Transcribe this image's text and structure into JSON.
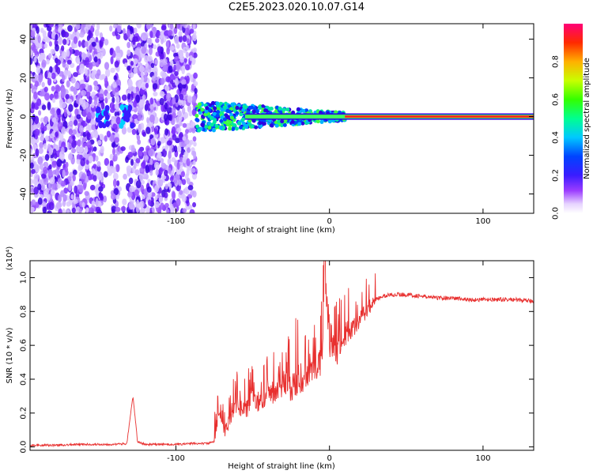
{
  "title": "C2E5.2023.020.10.07.G14",
  "chart_data": [
    {
      "type": "heatmap",
      "xlabel": "Height of straight line (km)",
      "ylabel": "Frequency (Hz)",
      "xlim": [
        -195,
        133
      ],
      "ylim": [
        -50,
        48
      ],
      "x_ticks": [
        -100,
        0,
        100
      ],
      "x_tick_labels": [
        "-100",
        "0",
        "100"
      ],
      "y_ticks": [
        -40,
        -20,
        0,
        20,
        40
      ],
      "y_tick_labels": [
        "-40",
        "-20",
        "0",
        "20",
        "40"
      ],
      "colorbar": {
        "label": "Normalized spectral amplitude",
        "range": [
          0,
          1
        ],
        "ticks": [
          0.0,
          0.2,
          0.4,
          0.6,
          0.8
        ],
        "tick_labels": [
          "0.0",
          "0.2",
          "0.4",
          "0.6",
          "0.8"
        ],
        "colormap": "rainbow"
      },
      "regions": [
        {
          "x": [
            -195,
            -87
          ],
          "freq": [
            -50,
            48
          ],
          "amplitude": 0.12,
          "description": "noise"
        },
        {
          "x": [
            -87,
            10
          ],
          "freq": [
            -4,
            4
          ],
          "amplitude": 0.5
        },
        {
          "x": [
            10,
            133
          ],
          "freq": [
            -1,
            1
          ],
          "amplitude": 0.95
        }
      ]
    },
    {
      "type": "line",
      "xlabel": "Height of straight line (km)",
      "ylabel": "SNR (10 * v/v)",
      "y_multiplier_label": "(x10⁴)",
      "xlim": [
        -195,
        133
      ],
      "ylim": [
        -0.02,
        1.1
      ],
      "x_ticks": [
        -100,
        0,
        100
      ],
      "x_tick_labels": [
        "-100",
        "0",
        "100"
      ],
      "y_ticks": [
        0.0,
        0.2,
        0.4,
        0.6,
        0.8,
        1.0
      ],
      "y_tick_labels": [
        "0.0",
        "0.2",
        "0.4",
        "0.6",
        "0.8",
        "1.0"
      ],
      "series": [
        {
          "color": "#e8302f",
          "x": [
            -195,
            -180,
            -160,
            -140,
            -132,
            -128,
            -125,
            -120,
            -100,
            -90,
            -80,
            -75,
            -72,
            -68,
            -65,
            -60,
            -55,
            -50,
            -45,
            -40,
            -35,
            -30,
            -25,
            -20,
            -15,
            -10,
            -5,
            -3,
            0,
            5,
            10,
            15,
            20,
            25,
            30,
            35,
            40,
            50,
            60,
            70,
            80,
            90,
            100,
            110,
            120,
            133
          ],
          "values": [
            0.01,
            0.01,
            0.015,
            0.015,
            0.02,
            0.3,
            0.03,
            0.015,
            0.015,
            0.02,
            0.02,
            0.03,
            0.2,
            0.1,
            0.15,
            0.25,
            0.2,
            0.3,
            0.25,
            0.35,
            0.3,
            0.38,
            0.35,
            0.4,
            0.42,
            0.45,
            0.5,
            1.05,
            0.6,
            0.55,
            0.65,
            0.7,
            0.75,
            0.82,
            0.87,
            0.89,
            0.9,
            0.9,
            0.89,
            0.88,
            0.88,
            0.87,
            0.87,
            0.87,
            0.87,
            0.86
          ]
        }
      ]
    }
  ]
}
